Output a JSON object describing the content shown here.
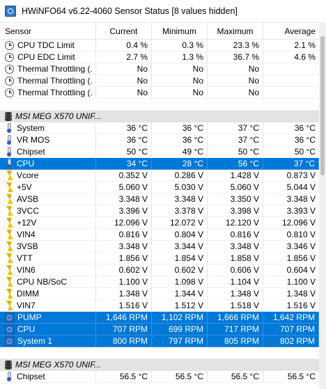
{
  "window": {
    "title": "HWiNFO64 v6.22-4060 Sensor Status [8 values hidden]"
  },
  "columns": [
    "Sensor",
    "Current",
    "Minimum",
    "Maximum",
    "Average"
  ],
  "rows": [
    {
      "type": "sensor",
      "icon": "clock-icon",
      "label": "CPU TDC Limit",
      "current": "0.4 %",
      "minimum": "0.3 %",
      "maximum": "23.3 %",
      "average": "2.1 %"
    },
    {
      "type": "sensor",
      "icon": "clock-icon",
      "label": "CPU EDC Limit",
      "current": "2.7 %",
      "minimum": "1.3 %",
      "maximum": "36.7 %",
      "average": "4.6 %"
    },
    {
      "type": "sensor",
      "icon": "clock-icon",
      "label": "Thermal Throttling (...",
      "current": "No",
      "minimum": "No",
      "maximum": "No",
      "average": ""
    },
    {
      "type": "sensor",
      "icon": "clock-icon",
      "label": "Thermal Throttling (...",
      "current": "No",
      "minimum": "No",
      "maximum": "No",
      "average": ""
    },
    {
      "type": "sensor",
      "icon": "clock-icon",
      "label": "Thermal Throttling (...",
      "current": "No",
      "minimum": "No",
      "maximum": "No",
      "average": ""
    },
    {
      "type": "spacer"
    },
    {
      "type": "group",
      "icon": "chip-icon",
      "label": "MSI MEG X570 UNIF..."
    },
    {
      "type": "sensor",
      "icon": "thermometer-icon",
      "label": "System",
      "current": "36 °C",
      "minimum": "36 °C",
      "maximum": "37 °C",
      "average": "36 °C"
    },
    {
      "type": "sensor",
      "icon": "thermometer-icon",
      "label": "VR MOS",
      "current": "36 °C",
      "minimum": "36 °C",
      "maximum": "37 °C",
      "average": "36 °C"
    },
    {
      "type": "sensor",
      "icon": "thermometer-icon",
      "label": "Chipset",
      "current": "50 °C",
      "minimum": "49 °C",
      "maximum": "50 °C",
      "average": "50 °C"
    },
    {
      "type": "sensor",
      "selected": true,
      "icon": "thermometer-icon",
      "label": "CPU",
      "current": "34 °C",
      "minimum": "28 °C",
      "maximum": "56 °C",
      "average": "37 °C"
    },
    {
      "type": "sensor",
      "icon": "voltage-icon",
      "label": "Vcore",
      "current": "0.352 V",
      "minimum": "0.286 V",
      "maximum": "1.428 V",
      "average": "0.873 V"
    },
    {
      "type": "sensor",
      "icon": "voltage-icon",
      "label": "+5V",
      "current": "5.060 V",
      "minimum": "5.030 V",
      "maximum": "5.060 V",
      "average": "5.044 V"
    },
    {
      "type": "sensor",
      "icon": "voltage-icon",
      "label": "AVSB",
      "current": "3.348 V",
      "minimum": "3.348 V",
      "maximum": "3.350 V",
      "average": "3.348 V"
    },
    {
      "type": "sensor",
      "icon": "voltage-icon",
      "label": "3VCC",
      "current": "3.396 V",
      "minimum": "3.378 V",
      "maximum": "3.398 V",
      "average": "3.393 V"
    },
    {
      "type": "sensor",
      "icon": "voltage-icon",
      "label": "+12V",
      "current": "12.096 V",
      "minimum": "12.072 V",
      "maximum": "12.120 V",
      "average": "12.096 V"
    },
    {
      "type": "sensor",
      "icon": "voltage-icon",
      "label": "VIN4",
      "current": "0.816 V",
      "minimum": "0.804 V",
      "maximum": "0.816 V",
      "average": "0.810 V"
    },
    {
      "type": "sensor",
      "icon": "voltage-icon",
      "label": "3VSB",
      "current": "3.348 V",
      "minimum": "3.344 V",
      "maximum": "3.348 V",
      "average": "3.346 V"
    },
    {
      "type": "sensor",
      "icon": "voltage-icon",
      "label": "VTT",
      "current": "1.856 V",
      "minimum": "1.854 V",
      "maximum": "1.858 V",
      "average": "1.856 V"
    },
    {
      "type": "sensor",
      "icon": "voltage-icon",
      "label": "VIN6",
      "current": "0.602 V",
      "minimum": "0.602 V",
      "maximum": "0.606 V",
      "average": "0.604 V"
    },
    {
      "type": "sensor",
      "icon": "voltage-icon",
      "label": "CPU NB/SoC",
      "current": "1.100 V",
      "minimum": "1.098 V",
      "maximum": "1.104 V",
      "average": "1.100 V"
    },
    {
      "type": "sensor",
      "icon": "voltage-icon",
      "label": "DIMM",
      "current": "1.348 V",
      "minimum": "1.344 V",
      "maximum": "1.348 V",
      "average": "1.348 V"
    },
    {
      "type": "sensor",
      "icon": "voltage-icon",
      "label": "VIN7",
      "current": "1.516 V",
      "minimum": "1.512 V",
      "maximum": "1.518 V",
      "average": "1.516 V"
    },
    {
      "type": "sensor",
      "selected": true,
      "icon": "fan-icon",
      "label": "PUMP",
      "current": "1,646 RPM",
      "minimum": "1,102 RPM",
      "maximum": "1,666 RPM",
      "average": "1,642 RPM"
    },
    {
      "type": "sensor",
      "selected": true,
      "icon": "fan-icon",
      "label": "CPU",
      "current": "707 RPM",
      "minimum": "699 RPM",
      "maximum": "717 RPM",
      "average": "707 RPM"
    },
    {
      "type": "sensor",
      "selected": true,
      "icon": "fan-icon",
      "label": "System 1",
      "current": "800 RPM",
      "minimum": "797 RPM",
      "maximum": "805 RPM",
      "average": "802 RPM"
    },
    {
      "type": "spacer"
    },
    {
      "type": "group",
      "icon": "chip-icon",
      "label": "MSI MEG X570 UNIF..."
    },
    {
      "type": "sensor",
      "icon": "thermometer-icon",
      "label": "Chipset",
      "current": "56.5 °C",
      "minimum": "56.5 °C",
      "maximum": "56.5 °C",
      "average": "56.5 °C"
    }
  ]
}
